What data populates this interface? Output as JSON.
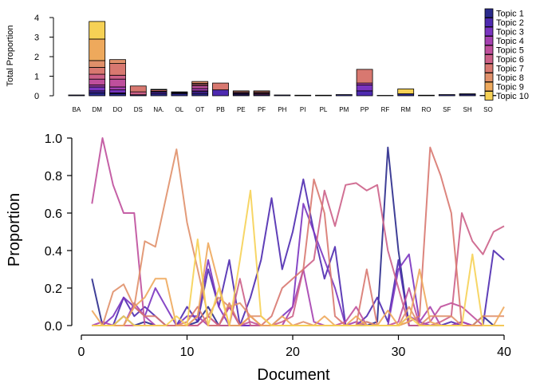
{
  "chart_data": [
    {
      "type": "bar",
      "stacked": true,
      "ylabel": "Total Proportion",
      "ylim": [
        0,
        4
      ],
      "yticks": [
        0,
        1,
        2,
        3,
        4
      ],
      "categories": [
        "BA",
        "DM",
        "DO",
        "DS",
        "NA.",
        "OL",
        "OT",
        "PB",
        "PE",
        "PF",
        "PH",
        "PI",
        "PL",
        "PM",
        "PP",
        "RF",
        "RM",
        "RO",
        "SF",
        "SH",
        "SO"
      ],
      "segments": [
        [
          0.04,
          0,
          0,
          0,
          0,
          0,
          0,
          0,
          0,
          0
        ],
        [
          0.15,
          0.1,
          0.2,
          0.1,
          0.3,
          0.25,
          0.35,
          0.35,
          1.1,
          0.9
        ],
        [
          0.1,
          0.05,
          0.15,
          0.15,
          0.4,
          0.2,
          0.6,
          0.2,
          0,
          0
        ],
        [
          0.05,
          0,
          0,
          0,
          0,
          0.15,
          0.3,
          0,
          0,
          0
        ],
        [
          0.1,
          0.08,
          0.05,
          0,
          0,
          0,
          0.07,
          0.03,
          0,
          0
        ],
        [
          0.1,
          0.05,
          0.02,
          0,
          0,
          0,
          0.03,
          0,
          0,
          0
        ],
        [
          0.1,
          0.1,
          0.05,
          0.12,
          0.14,
          0.07,
          0.05,
          0.1,
          0,
          0
        ],
        [
          0,
          0.3,
          0,
          0,
          0,
          0,
          0.35,
          0,
          0,
          0
        ],
        [
          0.05,
          0.05,
          0.05,
          0,
          0,
          0,
          0.05,
          0.05,
          0,
          0
        ],
        [
          0.05,
          0,
          0,
          0.05,
          0.05,
          0,
          0.05,
          0.05,
          0,
          0
        ],
        [
          0.04,
          0,
          0,
          0,
          0,
          0,
          0,
          0,
          0,
          0
        ],
        [
          0.03,
          0,
          0,
          0,
          0,
          0,
          0,
          0,
          0,
          0
        ],
        [
          0.03,
          0,
          0,
          0,
          0,
          0,
          0,
          0,
          0,
          0
        ],
        [
          0.06,
          0,
          0,
          0,
          0,
          0,
          0,
          0,
          0,
          0
        ],
        [
          0,
          0.25,
          0.3,
          0.1,
          0,
          0,
          0.7,
          0,
          0,
          0
        ],
        [
          0.02,
          0,
          0,
          0,
          0,
          0,
          0,
          0,
          0,
          0
        ],
        [
          0.1,
          0,
          0,
          0,
          0,
          0,
          0,
          0,
          0,
          0.25
        ],
        [
          0.03,
          0,
          0,
          0,
          0,
          0,
          0,
          0,
          0,
          0
        ],
        [
          0.06,
          0,
          0,
          0,
          0,
          0,
          0,
          0,
          0,
          0
        ],
        [
          0.08,
          0.02,
          0,
          0,
          0,
          0,
          0,
          0,
          0,
          0
        ],
        [
          0.02,
          0,
          0,
          0,
          0,
          0,
          0,
          0,
          0,
          0
        ]
      ],
      "colors": [
        "#2a2a8c",
        "#4e2ab0",
        "#7a34c0",
        "#a540b0",
        "#bf4f9c",
        "#cc6088",
        "#d87870",
        "#e0906a",
        "#eea95c",
        "#f6d155"
      ],
      "legend": {
        "placement": "right",
        "entries": [
          "Topic 1",
          "Topic 2",
          "Topic 3",
          "Topic 4",
          "Topic 5",
          "Topic 6",
          "Topic 7",
          "Topic 8",
          "Topic 9",
          "Topic 10"
        ]
      }
    },
    {
      "type": "line",
      "xlabel": "Document",
      "ylabel": "Proportion",
      "xlim": [
        0,
        41
      ],
      "ylim": [
        0,
        1.05
      ],
      "xticks": [
        0,
        10,
        20,
        30,
        40
      ],
      "yticks": [
        0.0,
        0.2,
        0.4,
        0.6,
        0.8,
        1.0
      ],
      "x": [
        1,
        2,
        3,
        4,
        5,
        6,
        7,
        8,
        9,
        10,
        11,
        12,
        13,
        14,
        15,
        16,
        17,
        18,
        19,
        20,
        21,
        22,
        23,
        24,
        25,
        26,
        27,
        28,
        29,
        30,
        31,
        32,
        33,
        34,
        35,
        36,
        37,
        38,
        39,
        40
      ],
      "series": [
        {
          "color": "#2a2a8c",
          "values": [
            0.25,
            0,
            0,
            0.05,
            0,
            0.02,
            0,
            0,
            0,
            0,
            0.02,
            0.1,
            0,
            0,
            0,
            0,
            0,
            0,
            0,
            0,
            0,
            0,
            0,
            0,
            0,
            0,
            0,
            0.02,
            0.95,
            0.4,
            0,
            0,
            0,
            0,
            0,
            0,
            0,
            0.05,
            0,
            0
          ]
        },
        {
          "color": "#4e2ab0",
          "values": [
            0,
            0,
            0,
            0.15,
            0.05,
            0.1,
            0.05,
            0,
            0,
            0.1,
            0.02,
            0.3,
            0.1,
            0.35,
            0,
            0.15,
            0.35,
            0.68,
            0.3,
            0.5,
            0.78,
            0.5,
            0.25,
            0.42,
            0,
            0,
            0.05,
            0.15,
            0.02,
            0.35,
            0,
            0,
            0,
            0,
            0.02,
            0,
            0,
            0,
            0.4,
            0.35
          ]
        },
        {
          "color": "#7a34c0",
          "values": [
            0,
            0,
            0.05,
            0.15,
            0.1,
            0.05,
            0.2,
            0.1,
            0,
            0.05,
            0.05,
            0.35,
            0.1,
            0,
            0,
            0,
            0,
            0,
            0.05,
            0.1,
            0.65,
            0.5,
            0.35,
            0.2,
            0,
            0,
            0.02,
            0,
            0,
            0.3,
            0.38,
            0.02,
            0,
            0,
            0,
            0.02,
            0,
            0,
            0,
            0
          ]
        },
        {
          "color": "#a540b0",
          "values": [
            0,
            0.02,
            0,
            0,
            0.12,
            0.05,
            0,
            0,
            0,
            0,
            0.05,
            0,
            0,
            0.1,
            0,
            0.05,
            0,
            0,
            0,
            0.1,
            0.3,
            0.02,
            0,
            0,
            0,
            0.02,
            0,
            0,
            0,
            0,
            0.05,
            0.02,
            0.1,
            0,
            0,
            0.02,
            0,
            0,
            0,
            0
          ]
        },
        {
          "color": "#bf4f9c",
          "values": [
            0.65,
            1.0,
            0.75,
            0.6,
            0.6,
            0,
            0,
            0,
            0,
            0,
            0,
            0.05,
            0,
            0.1,
            0,
            0.02,
            0,
            0,
            0,
            0,
            0,
            0,
            0,
            0,
            0.02,
            0.1,
            0,
            0,
            0,
            0.02,
            0.2,
            0,
            0.02,
            0.1,
            0.12,
            0.1,
            0.05,
            0,
            0,
            0
          ]
        },
        {
          "color": "#cc6088",
          "values": [
            0,
            0,
            0,
            0,
            0,
            0,
            0,
            0,
            0,
            0,
            0,
            0.05,
            0,
            0,
            0.25,
            0,
            0,
            0,
            0.02,
            0.05,
            0.3,
            0.35,
            0.72,
            0.53,
            0.75,
            0.76,
            0.72,
            0.75,
            0.4,
            0.2,
            0,
            0,
            0,
            0.02,
            0.05,
            0.6,
            0.45,
            0.38,
            0.5,
            0.53
          ]
        },
        {
          "color": "#d87870",
          "values": [
            0,
            0,
            0,
            0,
            0.1,
            0.05,
            0.05,
            0,
            0,
            0.02,
            0.1,
            0,
            0,
            0.12,
            0,
            0.05,
            0,
            0.05,
            0.2,
            0.25,
            0.3,
            0.78,
            0.6,
            0.05,
            0,
            0,
            0.3,
            0,
            0,
            0,
            0.02,
            0.05,
            0.95,
            0.8,
            0.6,
            0,
            0,
            0,
            0,
            0
          ]
        },
        {
          "color": "#e0906a",
          "values": [
            0,
            0,
            0.18,
            0.22,
            0.1,
            0.45,
            0.42,
            0.68,
            0.94,
            0.55,
            0.3,
            0.05,
            0.15,
            0.1,
            0.12,
            0.05,
            0.05,
            0,
            0,
            0,
            0.02,
            0,
            0,
            0,
            0,
            0,
            0.02,
            0,
            0,
            0,
            0.1,
            0,
            0.05,
            0.05,
            0.05,
            0,
            0,
            0.05,
            0.05,
            0.05
          ]
        },
        {
          "color": "#eea95c",
          "values": [
            0.08,
            0,
            0,
            0,
            0.1,
            0.15,
            0.25,
            0.25,
            0,
            0,
            0.05,
            0.44,
            0.22,
            0,
            0,
            0.05,
            0,
            0,
            0.05,
            0,
            0,
            0,
            0.05,
            0,
            0,
            0.05,
            0,
            0,
            0.08,
            0,
            0.02,
            0.3,
            0.02,
            0,
            0,
            0,
            0,
            0,
            0,
            0.1
          ]
        },
        {
          "color": "#f6d155",
          "values": [
            0,
            0,
            0,
            0.05,
            0,
            0,
            0,
            0,
            0.05,
            0,
            0.46,
            0,
            0.2,
            0,
            0.35,
            0.72,
            0.05,
            0,
            0,
            0,
            0,
            0,
            0,
            0,
            0,
            0,
            0,
            0,
            0,
            0,
            0.05,
            0,
            0,
            0,
            0,
            0,
            0.38,
            0,
            0,
            0
          ]
        }
      ]
    }
  ]
}
